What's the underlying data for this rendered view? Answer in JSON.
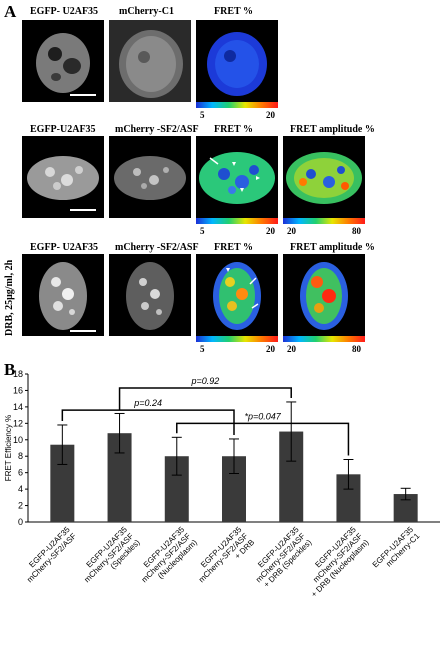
{
  "panel_a": {
    "letter": "A",
    "row1": {
      "labels": [
        "EGFP- U2AF35",
        "mCherry-C1",
        "FRET %"
      ],
      "colorbar": {
        "min": "5",
        "max": "20"
      }
    },
    "row2": {
      "labels": [
        "EGFP-U2AF35",
        "mCherry -SF2/ASF",
        "FRET %",
        "FRET amplitude %"
      ],
      "colorbar_fret": {
        "min": "5",
        "max": "20"
      },
      "colorbar_amp": {
        "min": "20",
        "max": "80"
      }
    },
    "row3": {
      "side_label": "DRB, 25μg/ml, 2h",
      "labels": [
        "EGFP- U2AF35",
        "mCherry -SF2/ASF",
        "FRET %",
        "FRET amplitude %"
      ],
      "colorbar_fret": {
        "min": "5",
        "max": "20"
      },
      "colorbar_amp": {
        "min": "20",
        "max": "80"
      }
    }
  },
  "panel_b": {
    "letter": "B",
    "annotations": [
      "p=0.92",
      "p=0.24",
      "*p=0.047"
    ],
    "chart_data": {
      "type": "bar",
      "ylabel": "FRET Efficiency %",
      "ylim": [
        0,
        18
      ],
      "yticks": [
        0,
        2,
        4,
        6,
        8,
        10,
        12,
        14,
        16,
        18
      ],
      "categories": [
        [
          "EGFP-U2AF35",
          "mCherry-SF2/ASF"
        ],
        [
          "EGFP-U2AF35",
          "mCherry-SF2/ASF",
          "(Speckles)"
        ],
        [
          "EGFP-U2AF35",
          "mCherry-SF2/ASF",
          "(Nucleoplasm)"
        ],
        [
          "EGFP-U2AF35",
          "mCherry-SF2/ASF",
          "+ DRB"
        ],
        [
          "EGFP-U2AF35",
          "mCherry-SF2/ASF",
          "+ DRB (Speckles)"
        ],
        [
          "EGFP-U2AF35",
          "mCherry-SF2/ASF",
          "+ DRB (Nucleoplasm)"
        ],
        [
          "EGFP-U2AF35",
          "mCherry-C1"
        ]
      ],
      "values": [
        9.4,
        10.8,
        8.0,
        8.0,
        11.0,
        5.8,
        3.4
      ],
      "errors": [
        2.4,
        2.4,
        2.3,
        2.1,
        3.6,
        1.8,
        0.7
      ],
      "bar_color": "#3a3a3a"
    }
  }
}
